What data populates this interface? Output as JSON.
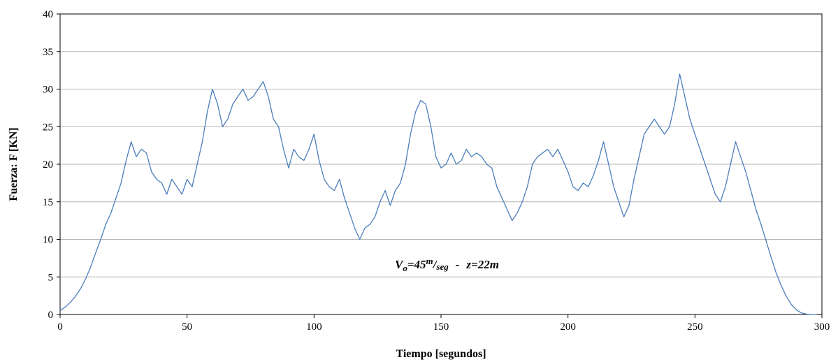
{
  "chart_data": {
    "type": "line",
    "xlabel": "Tiempo [segundos]",
    "ylabel": "Fuerza: F [KN]",
    "xlim": [
      0,
      300
    ],
    "ylim": [
      0,
      40
    ],
    "x_ticks": [
      "0",
      "50",
      "100",
      "150",
      "200",
      "250",
      "300"
    ],
    "y_ticks": [
      "0",
      "5",
      "10",
      "15",
      "20",
      "25",
      "30",
      "35",
      "40"
    ],
    "grid": "horizontal",
    "line_color": "#4a7ebb",
    "annotation": {
      "v_symbol": "V",
      "v_subscript": "o",
      "v_eq": "=45",
      "v_unit_num": "m",
      "v_unit_den": "seg",
      "separator": "-",
      "z_text": "z=22m"
    },
    "series": [
      {
        "x": [
          0,
          2,
          4,
          6,
          8,
          10,
          12,
          14,
          16,
          18,
          20,
          22,
          24,
          26,
          28,
          30,
          32,
          34,
          36,
          38,
          40,
          42,
          44,
          46,
          48,
          50,
          52,
          54,
          56,
          58,
          60,
          62,
          64,
          66,
          68,
          70,
          72,
          74,
          76,
          78,
          80,
          82,
          84,
          86,
          88,
          90,
          92,
          94,
          96,
          98,
          100,
          102,
          104,
          106,
          108,
          110,
          112,
          114,
          116,
          118,
          120,
          122,
          124,
          126,
          128,
          130,
          132,
          134,
          136,
          138,
          140,
          142,
          144,
          146,
          148,
          150,
          152,
          154,
          156,
          158,
          160,
          162,
          164,
          166,
          168,
          170,
          172,
          174,
          176,
          178,
          180,
          182,
          184,
          186,
          188,
          190,
          192,
          194,
          196,
          198,
          200,
          202,
          204,
          206,
          208,
          210,
          212,
          214,
          216,
          218,
          220,
          222,
          224,
          226,
          228,
          230,
          232,
          234,
          236,
          238,
          240,
          242,
          244,
          246,
          248,
          250,
          252,
          254,
          256,
          258,
          260,
          262,
          264,
          266,
          268,
          270,
          272,
          274,
          276,
          278,
          280,
          282,
          284,
          286,
          288,
          290,
          292,
          294,
          296,
          298
        ],
        "values": [
          0.5,
          1.0,
          1.6,
          2.4,
          3.4,
          4.7,
          6.3,
          8.2,
          10.0,
          12.0,
          13.5,
          15.5,
          17.5,
          20.5,
          23.0,
          21.0,
          22.0,
          21.5,
          19.0,
          18.0,
          17.5,
          16.0,
          18.0,
          17.0,
          16.0,
          18.0,
          17.0,
          20.0,
          23.0,
          27.0,
          30.0,
          28.0,
          25.0,
          26.0,
          28.0,
          29.0,
          30.0,
          28.5,
          29.0,
          30.0,
          31.0,
          29.0,
          26.0,
          25.0,
          22.0,
          19.5,
          22.0,
          21.0,
          20.5,
          22.0,
          24.0,
          20.5,
          18.0,
          17.0,
          16.5,
          18.0,
          15.5,
          13.5,
          11.5,
          10.0,
          11.5,
          12.0,
          13.0,
          15.0,
          16.5,
          14.5,
          16.5,
          17.5,
          20.0,
          24.0,
          27.0,
          28.5,
          28.0,
          25.0,
          21.0,
          19.5,
          20.0,
          21.5,
          20.0,
          20.5,
          22.0,
          21.0,
          21.5,
          21.0,
          20.0,
          19.5,
          17.0,
          15.5,
          14.0,
          12.5,
          13.5,
          15.0,
          17.0,
          20.0,
          21.0,
          21.5,
          22.0,
          21.0,
          22.0,
          20.5,
          19.0,
          17.0,
          16.5,
          17.5,
          17.0,
          18.5,
          20.5,
          23.0,
          20.0,
          17.0,
          15.0,
          13.0,
          14.5,
          18.0,
          21.0,
          24.0,
          25.0,
          26.0,
          25.0,
          24.0,
          25.0,
          28.0,
          32.0,
          29.0,
          26.0,
          24.0,
          22.0,
          20.0,
          18.0,
          16.0,
          15.0,
          17.0,
          20.0,
          23.0,
          21.0,
          19.0,
          16.5,
          14.0,
          12.0,
          9.8,
          7.6,
          5.5,
          3.8,
          2.4,
          1.3,
          0.6,
          0.2,
          0.05,
          0.0,
          0.0
        ]
      }
    ]
  }
}
